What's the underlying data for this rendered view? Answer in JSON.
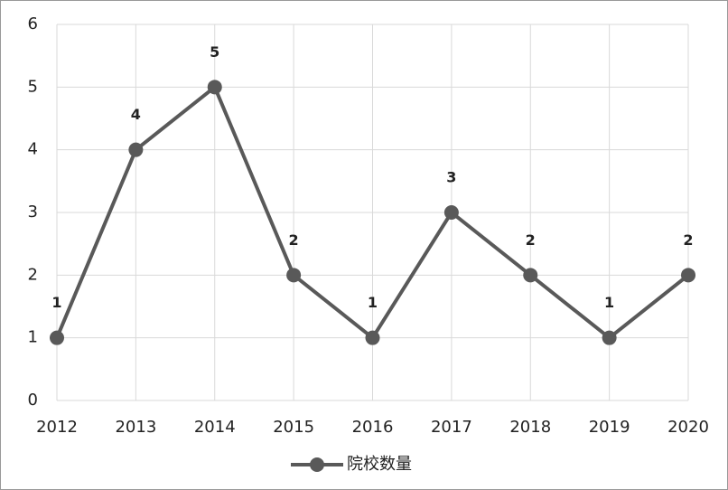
{
  "chart_data": {
    "type": "line",
    "categories": [
      "2012",
      "2013",
      "2014",
      "2015",
      "2016",
      "2017",
      "2018",
      "2019",
      "2020"
    ],
    "series": [
      {
        "name": "院校数量",
        "color": "#595959",
        "values": [
          1,
          4,
          5,
          2,
          1,
          3,
          2,
          1,
          2
        ]
      }
    ],
    "ylim": [
      0,
      6
    ],
    "yticks": [
      0,
      1,
      2,
      3,
      4,
      5,
      6
    ],
    "grid": true,
    "legend": "bottom"
  }
}
